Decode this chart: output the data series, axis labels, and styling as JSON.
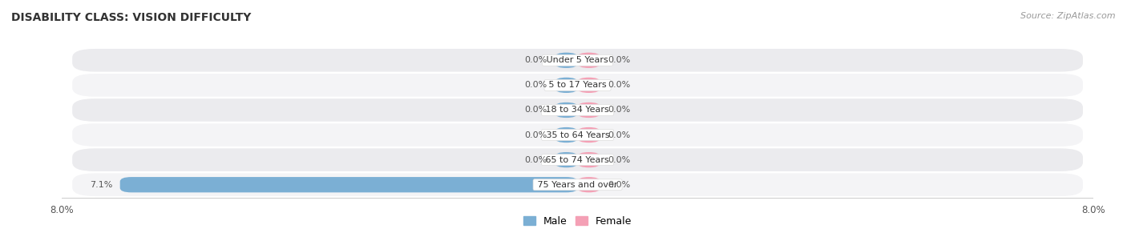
{
  "title": "DISABILITY CLASS: VISION DIFFICULTY",
  "source": "Source: ZipAtlas.com",
  "categories": [
    "75 Years and over",
    "65 to 74 Years",
    "35 to 64 Years",
    "18 to 34 Years",
    "5 to 17 Years",
    "Under 5 Years"
  ],
  "male_values": [
    7.1,
    0.0,
    0.0,
    0.0,
    0.0,
    0.0
  ],
  "female_values": [
    0.0,
    0.0,
    0.0,
    0.0,
    0.0,
    0.0
  ],
  "male_color": "#7bafd4",
  "female_color": "#f4a0b5",
  "xlim": 8.0,
  "min_bar_display": 0.35,
  "title_fontsize": 10,
  "source_fontsize": 8,
  "label_fontsize": 8,
  "cat_fontsize": 8,
  "tick_fontsize": 8.5,
  "background_color": "#ffffff",
  "row_bg_light": "#f4f4f6",
  "row_bg_dark": "#ebebee"
}
